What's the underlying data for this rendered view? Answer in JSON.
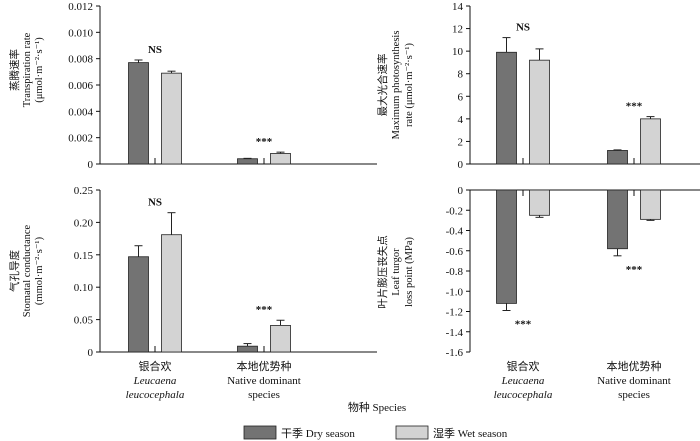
{
  "colors": {
    "dry": "#737373",
    "wet": "#d3d3d3"
  },
  "figure": {
    "xlabel": "物种 Species",
    "categories": [
      {
        "zh": "银合欢",
        "sci1": "Leucaena",
        "sci2": "leucocephala"
      },
      {
        "zh": "本地优势种",
        "en1": "Native dominant",
        "en2": "species"
      }
    ],
    "legend": [
      {
        "label": "干季 Dry season",
        "color_key": "dry"
      },
      {
        "label": "湿季 Wet season",
        "color_key": "wet"
      }
    ]
  },
  "chart_data": [
    {
      "type": "bar",
      "ylabel_zh": "蒸腾速率",
      "ylabel_en": "Transpiration rate",
      "ylabel_unit": "(μmol·m⁻²·s⁻¹)",
      "categories": [
        "银合欢 Leucaena leucocephala",
        "本地优势种 Native dominant species"
      ],
      "series": [
        {
          "name": "干季 Dry season",
          "values": [
            0.0077,
            0.0004
          ],
          "errors": [
            0.0002,
            3e-05
          ]
        },
        {
          "name": "湿季 Wet season",
          "values": [
            0.0069,
            0.0008
          ],
          "errors": [
            0.00015,
            0.0001
          ]
        }
      ],
      "significance": [
        "NS",
        "***"
      ],
      "ylim": [
        0,
        0.012
      ],
      "yticks": [
        "0",
        "0.002",
        "0.004",
        "0.006",
        "0.008",
        "0.010",
        "0.012"
      ]
    },
    {
      "type": "bar",
      "ylabel_zh": "最大光合速率",
      "ylabel_en1": "Maximum photosynthesis",
      "ylabel_en2": "rate (μmol·m⁻²·s⁻¹)",
      "categories": [
        "银合欢 Leucaena leucocephala",
        "本地优势种 Native dominant species"
      ],
      "series": [
        {
          "name": "干季 Dry season",
          "values": [
            9.9,
            1.2
          ],
          "errors": [
            1.3,
            0.05
          ]
        },
        {
          "name": "湿季 Wet season",
          "values": [
            9.2,
            4.0
          ],
          "errors": [
            1.0,
            0.2
          ]
        }
      ],
      "significance": [
        "NS",
        "***"
      ],
      "ylim": [
        0,
        14
      ],
      "yticks": [
        "0",
        "2",
        "4",
        "6",
        "8",
        "10",
        "12",
        "14"
      ]
    },
    {
      "type": "bar",
      "ylabel_zh": "气孔导度",
      "ylabel_en1": "Stomatal conductance",
      "ylabel_en2": "(mmol·m⁻²·s⁻¹)",
      "categories": [
        "银合欢 Leucaena leucocephala",
        "本地优势种 Native dominant species"
      ],
      "series": [
        {
          "name": "干季 Dry season",
          "values": [
            0.147,
            0.009
          ],
          "errors": [
            0.017,
            0.004
          ]
        },
        {
          "name": "湿季 Wet season",
          "values": [
            0.181,
            0.041
          ],
          "errors": [
            0.034,
            0.008
          ]
        }
      ],
      "significance": [
        "NS",
        "***"
      ],
      "ylim": [
        0,
        0.25
      ],
      "yticks": [
        "0",
        "0.05",
        "0.10",
        "0.15",
        "0.20",
        "0.25"
      ]
    },
    {
      "type": "bar",
      "ylabel_zh": "叶片膨压丧失点",
      "ylabel_en1": "Leaf turgor",
      "ylabel_en2": "loss point (MPa)",
      "categories": [
        "银合欢 Leucaena leucocephala",
        "本地优势种 Native dominant species"
      ],
      "series": [
        {
          "name": "干季 Dry season",
          "values": [
            -1.12,
            -0.58
          ],
          "errors": [
            0.07,
            0.07
          ]
        },
        {
          "name": "湿季 Wet season",
          "values": [
            -0.25,
            -0.29
          ],
          "errors": [
            0.02,
            0.01
          ]
        }
      ],
      "significance": [
        "***",
        "***"
      ],
      "ylim": [
        -1.6,
        0
      ],
      "yticks": [
        "0",
        "-0.2",
        "-0.4",
        "-0.6",
        "-0.8",
        "-1.0",
        "-1.2",
        "-1.4",
        "-1.6"
      ]
    }
  ]
}
